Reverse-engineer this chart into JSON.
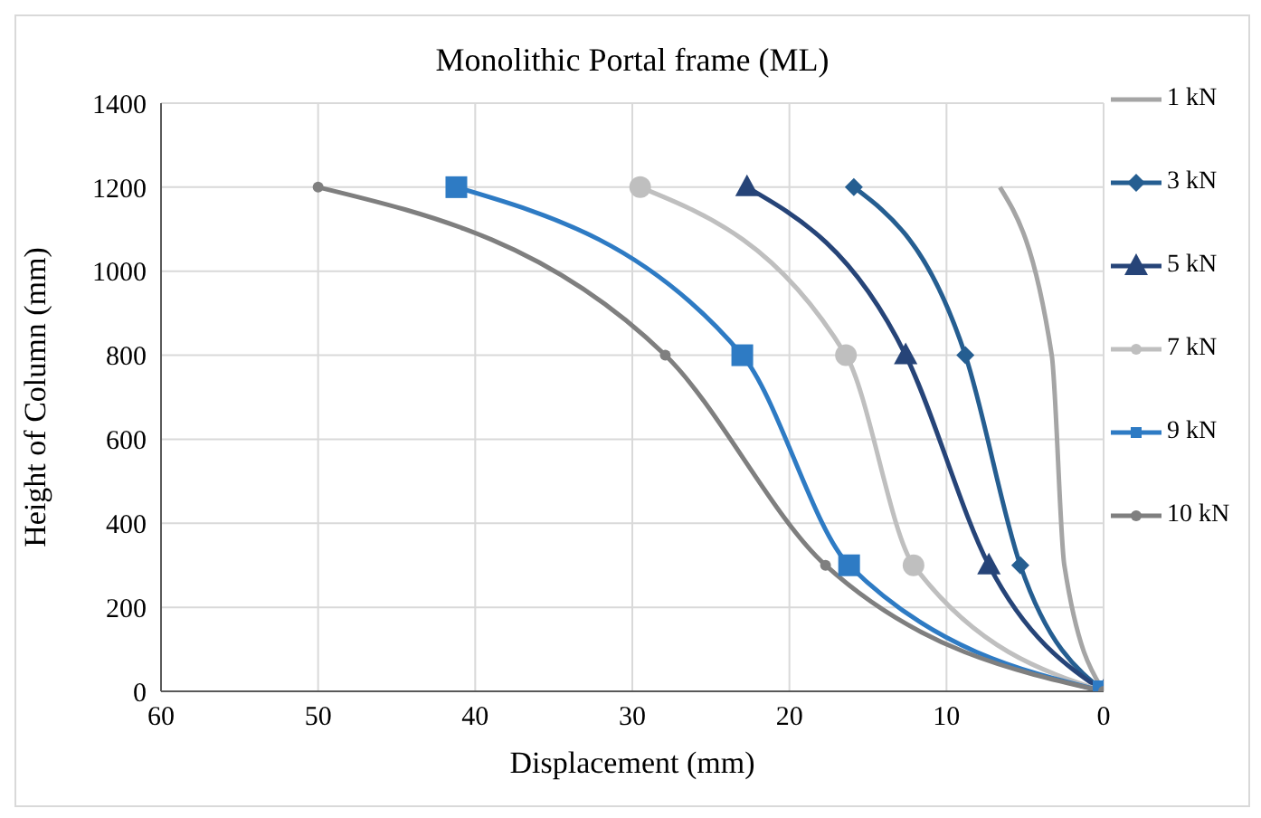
{
  "chart_data": {
    "type": "line",
    "title": "Monolithic Portal frame (ML)",
    "xlabel": "Displacement (mm)",
    "ylabel": "Height of Column (mm)",
    "xlim": [
      60,
      0
    ],
    "xticks": [
      60,
      50,
      40,
      30,
      20,
      10,
      0
    ],
    "ylim": [
      0,
      1400
    ],
    "yticks": [
      0,
      200,
      400,
      600,
      800,
      1000,
      1200,
      1400
    ],
    "grid": true,
    "legend": "right",
    "series": [
      {
        "name": "1 kN",
        "color": "#a5a5a5",
        "marker": "none",
        "x": [
          0,
          2.5,
          3.3,
          6.6
        ],
        "values": [
          0,
          300,
          800,
          1200
        ]
      },
      {
        "name": "3 kN",
        "color": "#255e91",
        "marker": "diamond",
        "x": [
          0,
          5.3,
          8.8,
          15.9
        ],
        "values": [
          0,
          300,
          800,
          1200
        ]
      },
      {
        "name": "5 kN",
        "color": "#264478",
        "marker": "triangle",
        "x": [
          0,
          7.3,
          12.6,
          22.7
        ],
        "values": [
          0,
          300,
          800,
          1200
        ]
      },
      {
        "name": "7 kN",
        "color": "#bfbfbf",
        "marker": "circle",
        "x": [
          0,
          12.1,
          16.4,
          29.5
        ],
        "values": [
          0,
          300,
          800,
          1200
        ]
      },
      {
        "name": "9 kN",
        "color": "#2e7bc4",
        "marker": "square",
        "x": [
          0,
          16.2,
          23.0,
          41.2
        ],
        "values": [
          0,
          300,
          800,
          1200
        ]
      },
      {
        "name": "10 kN",
        "color": "#7f7f7f",
        "marker": "circle",
        "x": [
          0,
          17.7,
          27.9,
          50.0
        ],
        "values": [
          0,
          300,
          800,
          1200
        ]
      }
    ]
  }
}
